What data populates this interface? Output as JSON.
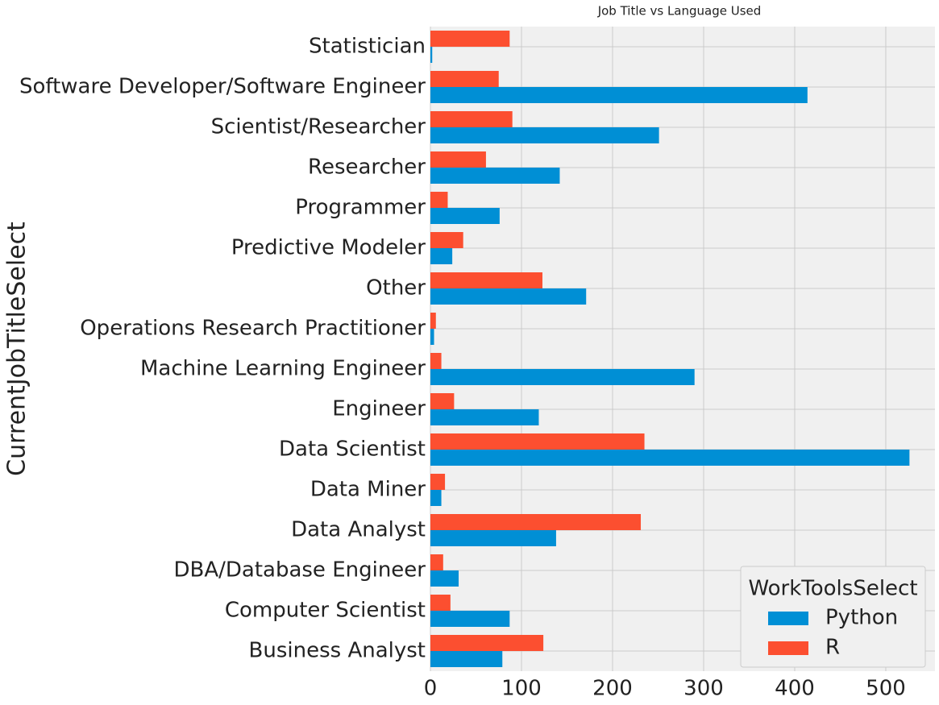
{
  "chart_data": {
    "type": "barh",
    "title": "Job Title vs Language Used",
    "y_label": "CurrentJobTitleSelect",
    "categories": [
      "Statistician",
      "Software Developer/Software Engineer",
      "Scientist/Researcher",
      "Researcher",
      "Programmer",
      "Predictive Modeler",
      "Other",
      "Operations Research Practitioner",
      "Machine Learning Engineer",
      "Engineer",
      "Data Scientist",
      "Data Miner",
      "Data Analyst",
      "DBA/Database Engineer",
      "Computer Scientist",
      "Business Analyst"
    ],
    "legend_title": "WorkToolsSelect",
    "legend_position": "lower right",
    "series": [
      {
        "name": "Python",
        "color": "#008fd5",
        "values": [
          2,
          414,
          251,
          142,
          76,
          24,
          171,
          4,
          290,
          119,
          526,
          12,
          138,
          31,
          87,
          79
        ]
      },
      {
        "name": "R",
        "color": "#fc4f30",
        "values": [
          87,
          75,
          90,
          61,
          19,
          36,
          123,
          6,
          12,
          26,
          235,
          16,
          231,
          14,
          22,
          124
        ]
      }
    ],
    "xlim": [
      0,
      554
    ],
    "xticks": [
      0,
      100,
      200,
      300,
      400,
      500
    ],
    "grid": true
  }
}
